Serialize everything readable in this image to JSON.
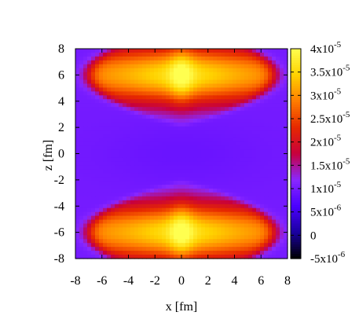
{
  "chart_data": {
    "type": "heatmap",
    "title": "",
    "xlabel": "x [fm]",
    "ylabel": "z [fm]",
    "xlim": [
      -8,
      8
    ],
    "ylim": [
      -8,
      8
    ],
    "x_ticks": [
      "-8",
      "-6",
      "-4",
      "-2",
      "0",
      "2",
      "4",
      "6",
      "8"
    ],
    "y_ticks": [
      "-8",
      "-6",
      "-4",
      "-2",
      "0",
      "2",
      "4",
      "6",
      "8"
    ],
    "colorbar": {
      "range": [
        -5e-06,
        4e-05
      ],
      "ticks": [
        {
          "value": 4e-05,
          "mantissa": "4x10",
          "exponent": "-5"
        },
        {
          "value": 3.5e-05,
          "mantissa": "3.5x10",
          "exponent": "-5"
        },
        {
          "value": 3e-05,
          "mantissa": "3x10",
          "exponent": "-5"
        },
        {
          "value": 2.5e-05,
          "mantissa": "2.5x10",
          "exponent": "-5"
        },
        {
          "value": 2e-05,
          "mantissa": "2x10",
          "exponent": "-5"
        },
        {
          "value": 1.5e-05,
          "mantissa": "1.5x10",
          "exponent": "-5"
        },
        {
          "value": 1e-05,
          "mantissa": "1x10",
          "exponent": "-5"
        },
        {
          "value": 5e-06,
          "mantissa": "5x10",
          "exponent": "-6"
        },
        {
          "value": 0,
          "mantissa": "0",
          "exponent": ""
        },
        {
          "value": -5e-06,
          "mantissa": "-5x10",
          "exponent": "-6"
        }
      ],
      "palette": [
        "#000000",
        "#1a00a0",
        "#4b00ff",
        "#8a28ff",
        "#c8003c",
        "#e62800",
        "#ff7d00",
        "#ffd200",
        "#ffff50"
      ]
    },
    "field": {
      "description_values": "approximate density in data units",
      "background": 1e-05,
      "center_value": 9e-06,
      "lobes": [
        {
          "z_center": 6.0,
          "peak": 3.6e-05
        },
        {
          "z_center": -6.0,
          "peak": 3.6e-05
        }
      ]
    }
  }
}
